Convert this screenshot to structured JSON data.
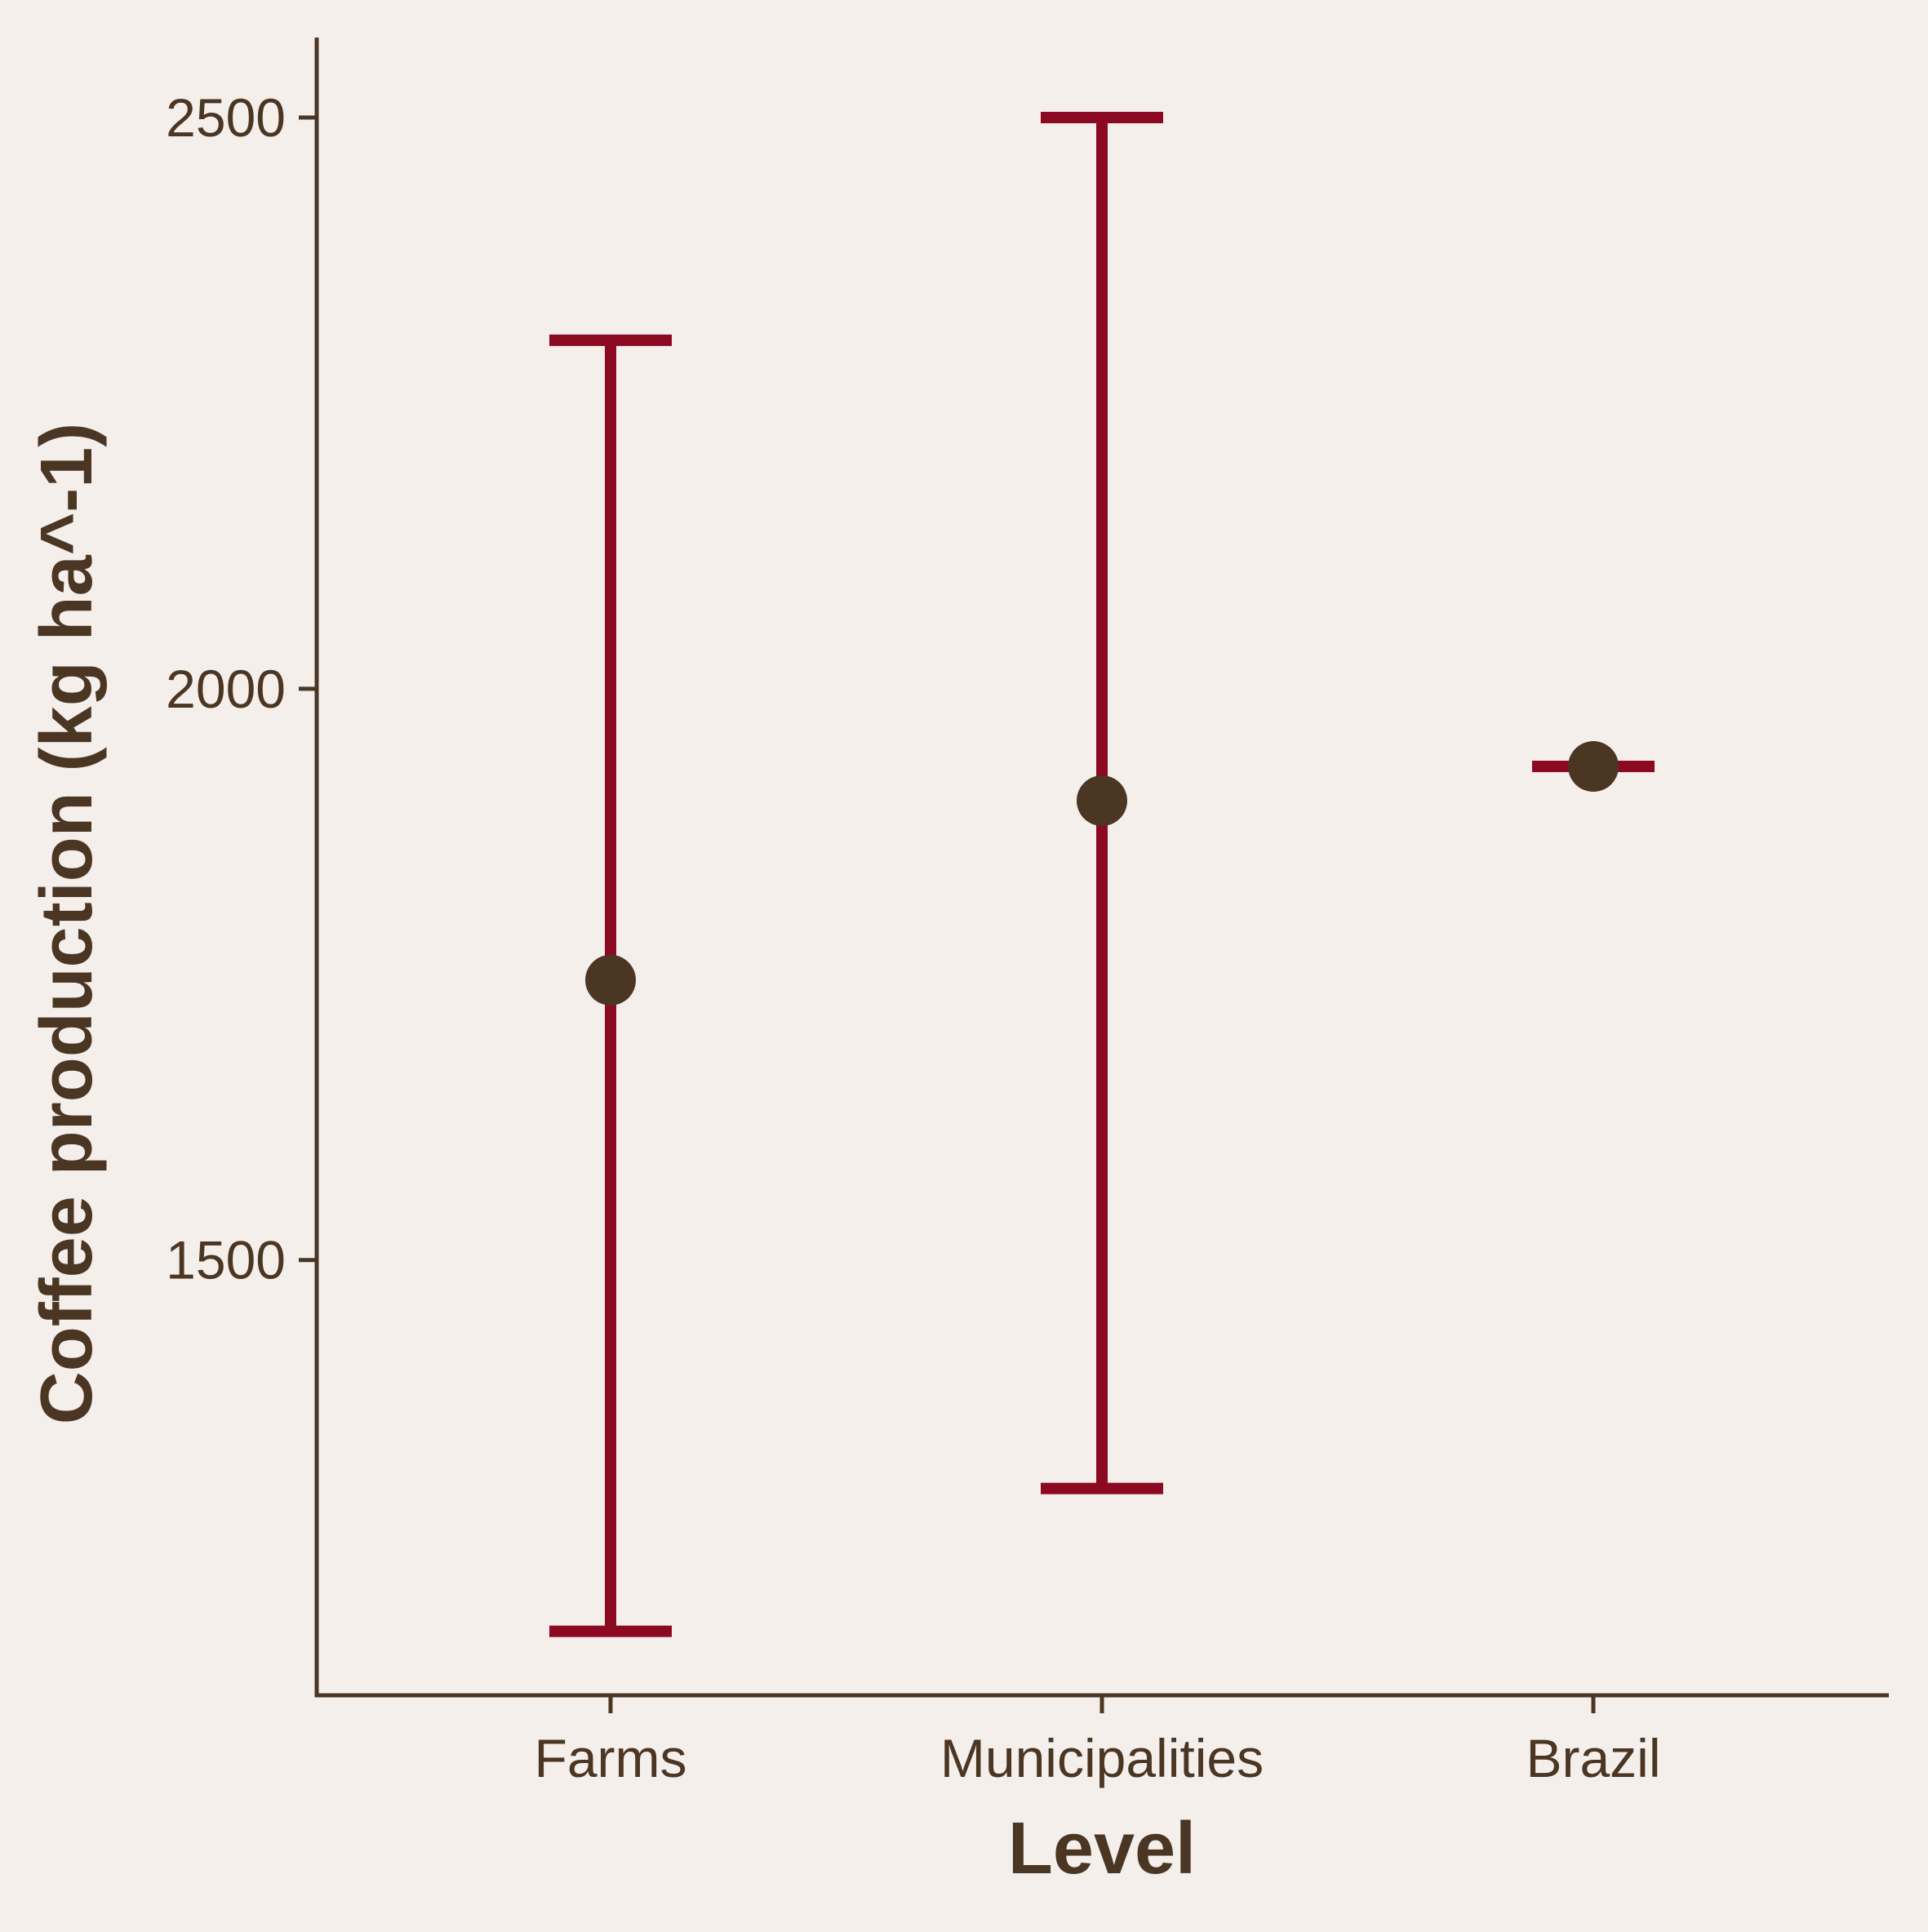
{
  "colors": {
    "background": "#f5efec",
    "axis": "#4a3623",
    "text": "#4a3623",
    "errorbar": "#8b0a22",
    "point": "#4a3623"
  },
  "chart_data": {
    "type": "scatter",
    "title": "",
    "xlabel": "Level",
    "ylabel": "Coffee production (kg ha^-1)",
    "categories": [
      "Farms",
      "Municipalities",
      "Brazil"
    ],
    "ylim": [
      1119,
      2570
    ],
    "yticks": [
      1500,
      2000,
      2500
    ],
    "ytick_labels": [
      "1500",
      "2000",
      "2500"
    ],
    "grid": false,
    "legend": "none",
    "series": [
      {
        "points": [
          {
            "category": "Farms",
            "mean": 1745,
            "lower": 1175,
            "upper": 2305
          },
          {
            "category": "Municipalities",
            "mean": 1902,
            "lower": 1300,
            "upper": 2500
          },
          {
            "category": "Brazil",
            "mean": 1932,
            "lower": 1932,
            "upper": 1932
          }
        ]
      }
    ]
  }
}
